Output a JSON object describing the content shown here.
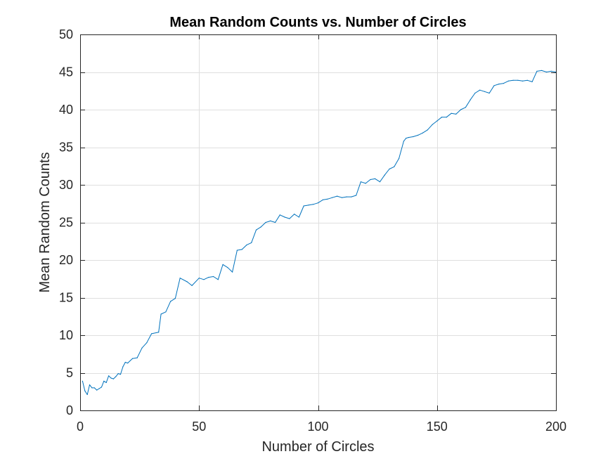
{
  "chart_data": {
    "type": "line",
    "title": "Mean Random Counts vs. Number of Circles",
    "xlabel": "Number of Circles",
    "ylabel": "Mean Random Counts",
    "xlim": [
      0,
      200
    ],
    "ylim": [
      0,
      50
    ],
    "xticks": [
      0,
      50,
      100,
      150,
      200
    ],
    "xtick_labels": [
      "0",
      "50",
      "100",
      "150",
      "200"
    ],
    "yticks": [
      0,
      5,
      10,
      15,
      20,
      25,
      30,
      35,
      40,
      45,
      50
    ],
    "ytick_labels": [
      "0",
      "5",
      "10",
      "15",
      "20",
      "25",
      "30",
      "35",
      "40",
      "45",
      "50"
    ],
    "grid": true,
    "series": [
      {
        "color": "#0072BD",
        "x": [
          1,
          2,
          3,
          4,
          5,
          6,
          7,
          8,
          9,
          10,
          11,
          12,
          13,
          14,
          15,
          16,
          17,
          18,
          19,
          20,
          22,
          24,
          26,
          28,
          30,
          33,
          34,
          36,
          38,
          40,
          42,
          45,
          47,
          50,
          52,
          54,
          56,
          58,
          60,
          62,
          64,
          66,
          68,
          70,
          72,
          74,
          76,
          78,
          80,
          82,
          84,
          86,
          88,
          90,
          92,
          94,
          96,
          98,
          100,
          102,
          104,
          106,
          108,
          110,
          112,
          114,
          116,
          118,
          120,
          122,
          124,
          126,
          128,
          130,
          132,
          134,
          136,
          137,
          138,
          140,
          142,
          144,
          146,
          148,
          150,
          152,
          154,
          156,
          158,
          160,
          162,
          164,
          166,
          168,
          170,
          172,
          174,
          176,
          178,
          180,
          182,
          184,
          186,
          188,
          190,
          192,
          194,
          196,
          198,
          200
        ],
        "y": [
          3.9,
          2.6,
          2.1,
          3.4,
          3.0,
          3.0,
          2.7,
          2.9,
          3.1,
          3.9,
          3.7,
          4.6,
          4.3,
          4.2,
          4.5,
          4.9,
          4.8,
          5.8,
          6.4,
          6.3,
          6.9,
          7.0,
          8.3,
          9.0,
          10.2,
          10.4,
          12.8,
          13.1,
          14.5,
          14.9,
          17.6,
          17.1,
          16.6,
          17.6,
          17.4,
          17.7,
          17.8,
          17.4,
          19.4,
          19.0,
          18.4,
          21.3,
          21.4,
          22.0,
          22.3,
          24.0,
          24.4,
          25.0,
          25.2,
          25.0,
          26.0,
          25.7,
          25.5,
          26.1,
          25.7,
          27.2,
          27.3,
          27.4,
          27.6,
          28.0,
          28.1,
          28.3,
          28.5,
          28.3,
          28.4,
          28.4,
          28.6,
          30.4,
          30.2,
          30.7,
          30.8,
          30.4,
          31.3,
          32.1,
          32.4,
          33.5,
          35.8,
          36.2,
          36.3,
          36.4,
          36.6,
          36.9,
          37.3,
          38.0,
          38.5,
          39.0,
          39.0,
          39.5,
          39.4,
          40.0,
          40.3,
          41.3,
          42.2,
          42.6,
          42.4,
          42.2,
          43.2,
          43.4,
          43.5,
          43.8,
          43.9,
          43.9,
          43.8,
          43.9,
          43.7,
          45.1,
          45.2,
          45.0,
          45.1,
          45.0
        ]
      }
    ]
  }
}
